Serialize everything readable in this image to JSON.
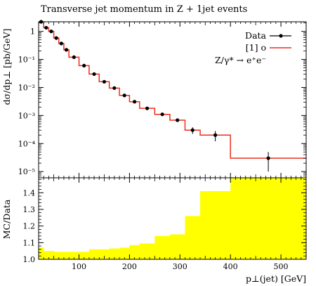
{
  "chart_data": {
    "type": "line",
    "title": "Transverse jet momentum in Z + 1jet events",
    "upper_panel": {
      "ylabel": "dσ/dp⊥ [pb/GeV]",
      "yscale": "log",
      "ylim": [
        6e-06,
        2.2
      ],
      "yticks": [
        {
          "value": 1,
          "label": "1"
        },
        {
          "value": 0.1,
          "label": "10⁻¹"
        },
        {
          "value": 0.01,
          "label": "10⁻²"
        },
        {
          "value": 0.001,
          "label": "10⁻³"
        },
        {
          "value": 0.0001,
          "label": "10⁻⁴"
        },
        {
          "value": 1e-05,
          "label": "10⁻⁵"
        }
      ],
      "legend": {
        "placement": "top-right",
        "entries": [
          {
            "label": "Data",
            "style": "points",
            "color": "#000000"
          },
          {
            "label": "[1] o",
            "style": "line",
            "color": "#e8301e"
          }
        ],
        "annotation": "Z/γ* → e⁺e⁻"
      },
      "series": [
        {
          "name": "Data",
          "x": [
            25,
            35,
            45,
            55,
            65,
            75,
            90,
            110,
            130,
            150,
            170,
            190,
            210,
            235,
            265,
            295,
            325,
            370,
            475
          ],
          "y": [
            2.2,
            1.35,
            1.0,
            0.58,
            0.37,
            0.22,
            0.12,
            0.06,
            0.03,
            0.016,
            0.0095,
            0.0052,
            0.0031,
            0.0018,
            0.0011,
            0.00068,
            0.0003,
            0.0002,
            3e-05
          ],
          "y_err": [
            0.1,
            0.05,
            0.04,
            0.02,
            0.012,
            0.008,
            0.004,
            0.002,
            0.001,
            0.0006,
            0.0004,
            0.0002,
            0.00013,
            8e-05,
            6e-05,
            5e-05,
            8e-05,
            8e-05,
            2e-05
          ]
        },
        {
          "name": "[1] o",
          "bin_edges": [
            20,
            30,
            40,
            50,
            60,
            70,
            80,
            100,
            120,
            140,
            160,
            180,
            200,
            220,
            250,
            280,
            310,
            340,
            400,
            550
          ],
          "values": [
            2.2,
            1.35,
            1.0,
            0.58,
            0.37,
            0.22,
            0.12,
            0.06,
            0.03,
            0.016,
            0.0095,
            0.0052,
            0.0031,
            0.0018,
            0.0011,
            0.00068,
            0.0003,
            0.0002,
            3e-05
          ]
        }
      ]
    },
    "lower_panel": {
      "ylabel": "MC/Data",
      "ylim": [
        1.0,
        1.49
      ],
      "yticks": [
        1.0,
        1.1,
        1.2,
        1.3,
        1.4
      ],
      "band_color": "#ffff00",
      "band": {
        "bin_edges": [
          20,
          30,
          40,
          50,
          60,
          70,
          80,
          100,
          120,
          140,
          160,
          180,
          200,
          220,
          250,
          280,
          310,
          340,
          400,
          550
        ],
        "upper": [
          1.07,
          1.05,
          1.05,
          1.045,
          1.045,
          1.045,
          1.045,
          1.045,
          1.06,
          1.06,
          1.065,
          1.07,
          1.085,
          1.095,
          1.14,
          1.15,
          1.26,
          1.41,
          1.49
        ]
      }
    },
    "xlabel": "p⊥(jet) [GeV]",
    "xlim": [
      20,
      550
    ],
    "xticks": [
      100,
      200,
      300,
      400,
      500
    ],
    "grid": false
  }
}
